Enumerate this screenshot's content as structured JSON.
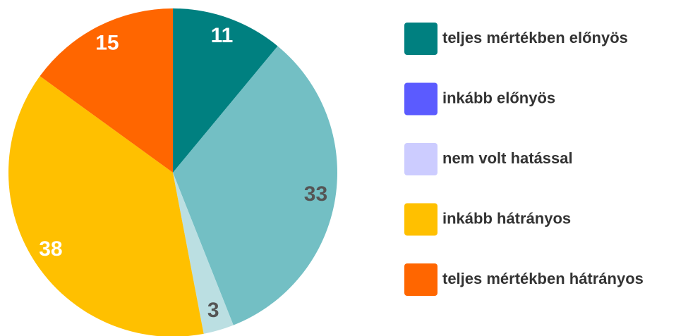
{
  "chart_data": {
    "type": "pie",
    "categories": [
      "teljes mértékben előnyös",
      "inkább előnyös",
      "nem volt hatással",
      "inkább hátrányos",
      "teljes mértékben hátrányos"
    ],
    "values": [
      11,
      33,
      3,
      38,
      15
    ],
    "colors": [
      "#008080",
      "#73bfc4",
      "#bbdfe2",
      "#ffc000",
      "#ff6600"
    ],
    "legend_colors": [
      "#008080",
      "#5b5bff",
      "#ccccff",
      "#ffc000",
      "#ff6600"
    ],
    "label_colors": [
      "#ffffff",
      "#555555",
      "#555555",
      "#ffffff",
      "#ffffff"
    ]
  }
}
